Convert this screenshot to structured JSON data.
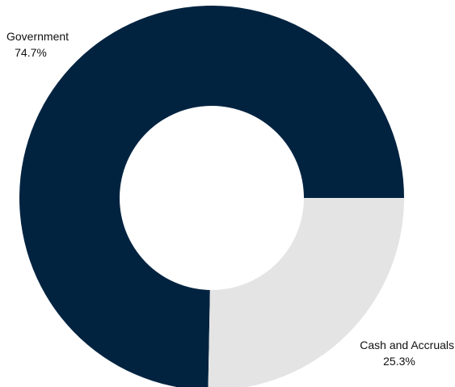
{
  "chart_data": {
    "type": "pie",
    "variant": "donut",
    "categories": [
      "Government",
      "Cash and Accruals"
    ],
    "values": [
      74.7,
      25.3
    ],
    "unit": "%",
    "labels": [
      "74.7%",
      "25.3%"
    ],
    "colors": [
      "#012340",
      "#e4e4e4"
    ],
    "title": "",
    "legend": "none"
  }
}
